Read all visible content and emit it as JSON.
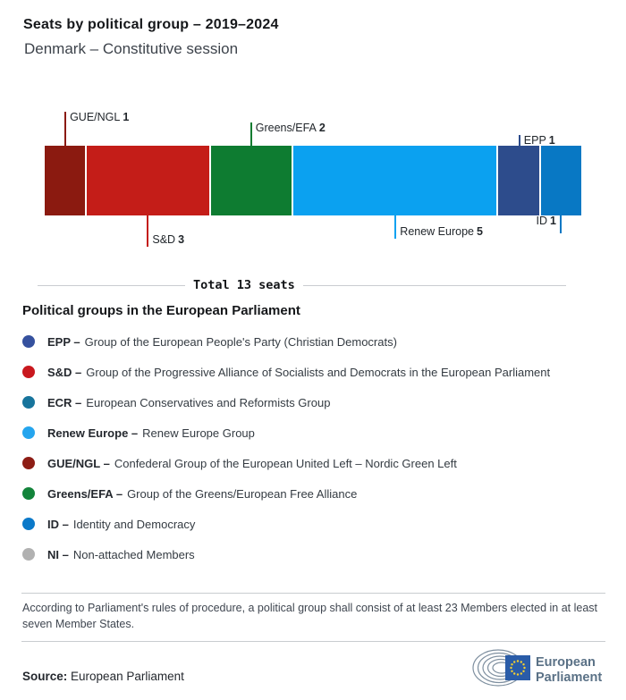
{
  "header": {
    "title": "Seats by political group – 2019–2024",
    "subtitle": "Denmark – Constitutive session"
  },
  "chart_data": {
    "type": "bar",
    "title": "Seats by political group – 2019–2024",
    "subtitle": "Denmark – Constitutive session",
    "total_seats": 13,
    "total_label": "Total 13 seats",
    "orientation": "horizontal-stacked",
    "segments": [
      {
        "group": "GUE/NGL",
        "seats": 1,
        "color": "#8b1a10",
        "label_side": "above",
        "tick_len": 38,
        "text_anchor": "left",
        "text_v": "top"
      },
      {
        "group": "S&D",
        "seats": 3,
        "color": "#c41d18",
        "label_side": "below",
        "tick_len": 35,
        "text_anchor": "left",
        "text_v": "bottom"
      },
      {
        "group": "Greens/EFA",
        "seats": 2,
        "color": "#0e7c31",
        "label_side": "above",
        "tick_len": 26,
        "text_anchor": "left",
        "text_v": "top"
      },
      {
        "group": "Renew Europe",
        "seats": 5,
        "color": "#0ba1f0",
        "label_side": "below",
        "tick_len": 26,
        "text_anchor": "left",
        "text_v": "bottom"
      },
      {
        "group": "EPP",
        "seats": 1,
        "color": "#2d4c8c",
        "label_side": "above",
        "tick_len": 12,
        "text_anchor": "left",
        "text_v": "top"
      },
      {
        "group": "ID",
        "seats": 1,
        "color": "#0878c4",
        "label_side": "below",
        "tick_len": 20,
        "text_anchor": "right",
        "text_v": "top"
      }
    ]
  },
  "legend": {
    "heading": "Political groups in the European Parliament",
    "items": [
      {
        "abbr": "EPP –",
        "desc": "Group of the European People's Party (Christian Democrats)",
        "color": "#35519e"
      },
      {
        "abbr": "S&D –",
        "desc": "Group of the Progressive Alliance of Socialists and Democrats in the European Parliament",
        "color": "#c9181e"
      },
      {
        "abbr": "ECR –",
        "desc": "European Conservatives and Reformists Group",
        "color": "#17749c"
      },
      {
        "abbr": "Renew Europe –",
        "desc": "Renew Europe Group",
        "color": "#25a5ee"
      },
      {
        "abbr": "GUE/NGL –",
        "desc": "Confederal Group of the European United Left – Nordic Green Left",
        "color": "#8d1d15"
      },
      {
        "abbr": "Greens/EFA –",
        "desc": "Group of the Greens/European Free Alliance",
        "color": "#13843b"
      },
      {
        "abbr": "ID –",
        "desc": "Identity and Democracy",
        "color": "#0b79c9"
      },
      {
        "abbr": "NI –",
        "desc": "Non-attached Members",
        "color": "#b1b1b1"
      }
    ]
  },
  "footer": {
    "note": "According to Parliament's rules of procedure, a political group shall consist of at least 23 Members elected in at least seven Member States.",
    "source_label": "Source:",
    "source_value": "European Parliament",
    "logo_line1": "European",
    "logo_line2": "Parliament",
    "logo_colors": {
      "arcs": "#7f90a0",
      "flag": "#2a5ca8",
      "stars": "#f8d12e",
      "text": "#5a7186"
    }
  }
}
